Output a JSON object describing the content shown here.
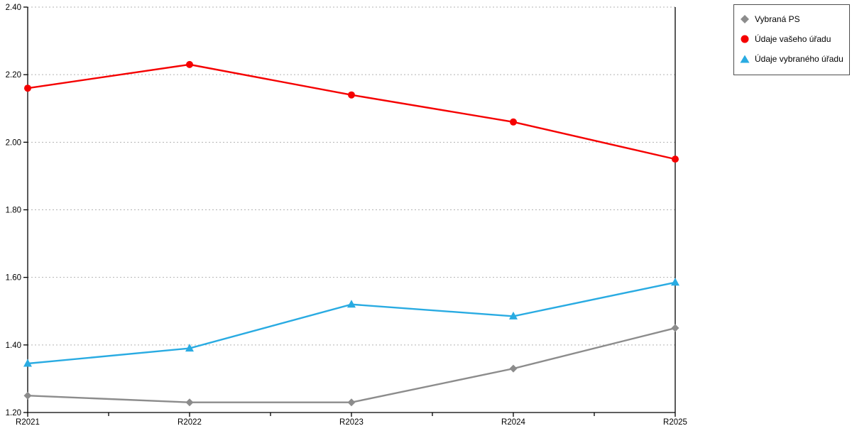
{
  "chart_data": {
    "type": "line",
    "title": "",
    "xlabel": "",
    "ylabel": "",
    "categories": [
      "R2021",
      "R2022",
      "R2023",
      "R2024",
      "R2025"
    ],
    "series": [
      {
        "name": "Vybraná PS",
        "marker": "diamond",
        "color": "#8c8c8c",
        "values": [
          1.25,
          1.23,
          1.23,
          1.33,
          1.45
        ]
      },
      {
        "name": "Údaje vašeho úřadu",
        "marker": "circle",
        "color": "#f50000",
        "values": [
          2.16,
          2.23,
          2.14,
          2.06,
          1.95
        ]
      },
      {
        "name": "Údaje vybraného úřadu",
        "marker": "triangle",
        "color": "#29abe2",
        "values": [
          1.345,
          1.39,
          1.52,
          1.485,
          1.585
        ]
      }
    ],
    "ylim": [
      1.2,
      2.4
    ],
    "y_tick_step": 0.2,
    "y_tick_labels": [
      "1.20",
      "1.40",
      "1.60",
      "1.80",
      "2.00",
      "2.20",
      "2.40"
    ],
    "grid": "horizontal-dotted",
    "grid_color": "#b3b3b3",
    "axis_color": "#000000",
    "legend_position": "outside-top-right",
    "x_minor_ticks": "midpoints"
  }
}
